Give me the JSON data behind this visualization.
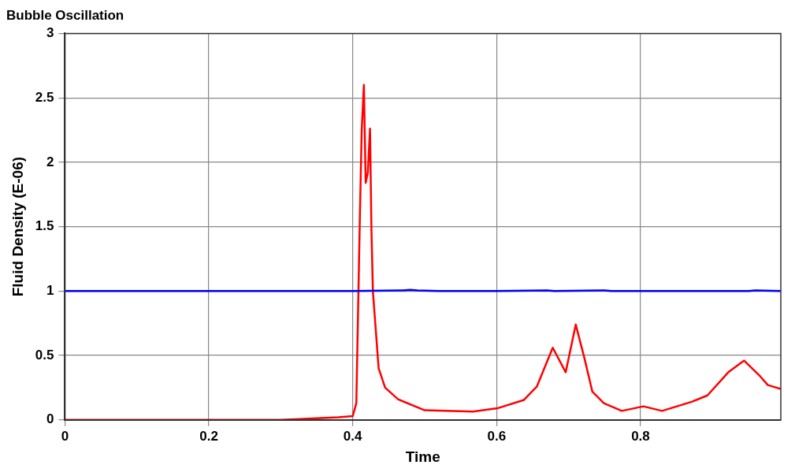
{
  "chart_data": {
    "type": "line",
    "title": "Bubble Oscillation",
    "xlabel": "Time",
    "ylabel": "Fluid Density (E-06)",
    "xlim": [
      0,
      0.995
    ],
    "xticks": [
      0,
      0.2,
      0.4,
      0.6,
      0.8
    ],
    "ylim": [
      0,
      3
    ],
    "yticks": [
      0,
      0.5,
      1,
      1.5,
      2,
      2.5,
      3
    ],
    "grid": true,
    "legend": false,
    "marker": "none",
    "line_style": "solid",
    "series": [
      {
        "color": "#0000ff",
        "x": [
          0,
          0.2,
          0.4,
          0.47,
          0.48,
          0.49,
          0.52,
          0.6,
          0.67,
          0.68,
          0.75,
          0.76,
          0.8,
          0.95,
          0.96,
          0.995
        ],
        "values": [
          1,
          1,
          1,
          1.005,
          1.01,
          1.005,
          1,
          1,
          1.005,
          1,
          1.005,
          1,
          1,
          1,
          1.005,
          1
        ]
      },
      {
        "color": "#ff0000",
        "x": [
          0,
          0.3,
          0.32,
          0.38,
          0.4,
          0.405,
          0.41,
          0.4125,
          0.4155,
          0.418,
          0.421,
          0.424,
          0.426,
          0.428,
          0.436,
          0.445,
          0.463,
          0.5,
          0.567,
          0.601,
          0.638,
          0.656,
          0.678,
          0.696,
          0.71,
          0.722,
          0.733,
          0.749,
          0.774,
          0.804,
          0.83,
          0.871,
          0.893,
          0.922,
          0.944,
          0.966,
          0.977,
          0.995
        ],
        "values": [
          0,
          0,
          0.005,
          0.02,
          0.03,
          0.13,
          1.6,
          2.25,
          2.6,
          1.84,
          1.92,
          2.26,
          1.48,
          1,
          0.4,
          0.25,
          0.16,
          0.075,
          0.065,
          0.09,
          0.155,
          0.26,
          0.56,
          0.37,
          0.74,
          0.48,
          0.22,
          0.13,
          0.07,
          0.105,
          0.07,
          0.14,
          0.19,
          0.37,
          0.46,
          0.34,
          0.27,
          0.24
        ]
      }
    ]
  }
}
